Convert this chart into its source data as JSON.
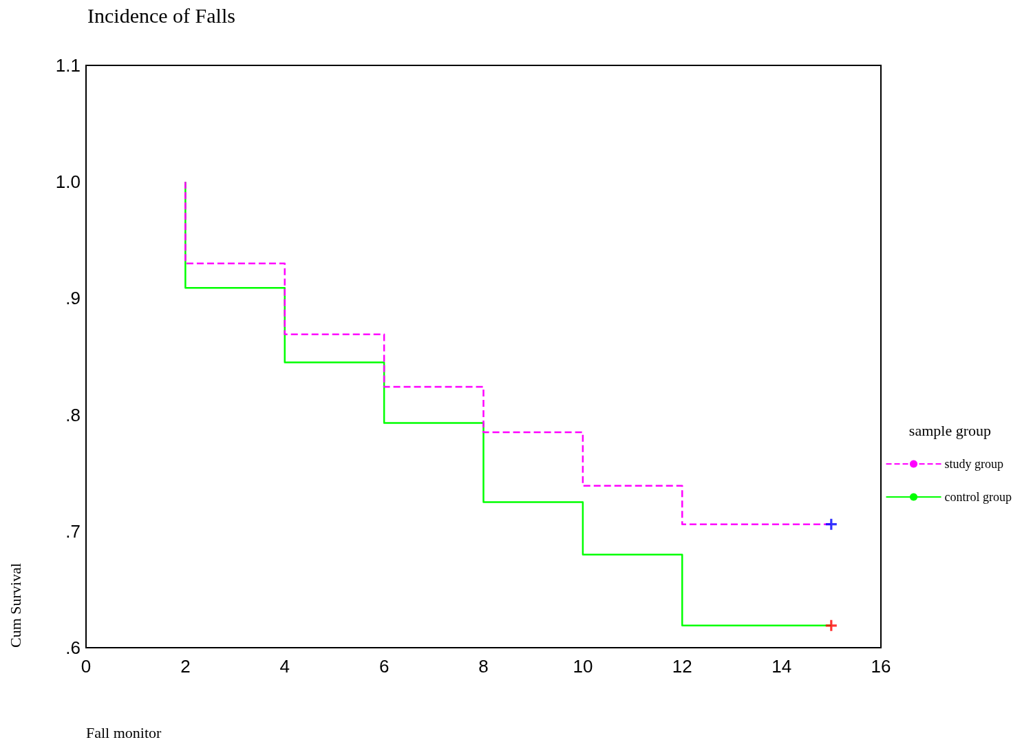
{
  "chart_data": {
    "type": "step",
    "title": "Incidence of Falls",
    "xlabel": "Fall monitor",
    "ylabel": "Cum Survival",
    "legend_title": "sample group",
    "xlim": [
      0,
      16
    ],
    "xticks": [
      0,
      2,
      4,
      6,
      8,
      10,
      12,
      14,
      16
    ],
    "ylim": [
      0.6,
      1.1
    ],
    "yticks": [
      {
        "value": 0.6,
        "label": ".6"
      },
      {
        "value": 0.7,
        "label": ".7"
      },
      {
        "value": 0.8,
        "label": ".8"
      },
      {
        "value": 0.9,
        "label": ".9"
      },
      {
        "value": 1.0,
        "label": "1.0"
      },
      {
        "value": 1.1,
        "label": "1.1"
      }
    ],
    "grid": false,
    "legend": "right",
    "marker": "none",
    "series": [
      {
        "name": "study group",
        "color": "#ff00ff",
        "line_style": "dashed",
        "x": [
          2,
          2,
          4,
          6,
          8,
          10,
          12,
          15
        ],
        "values": [
          1.0,
          0.93,
          0.869,
          0.824,
          0.785,
          0.739,
          0.706,
          0.706
        ]
      },
      {
        "name": "control group",
        "color": "#00ff00",
        "line_style": "solid",
        "x": [
          2,
          2,
          4,
          6,
          8,
          10,
          12,
          15
        ],
        "values": [
          1.0,
          0.909,
          0.845,
          0.793,
          0.725,
          0.68,
          0.619,
          0.619
        ]
      },
      {
        "type": "scatter",
        "marker": "cross",
        "color": "#0000ff",
        "x": [
          15
        ],
        "values": [
          0.706
        ]
      },
      {
        "type": "scatter",
        "marker": "cross",
        "color": "#ff0000",
        "x": [
          15
        ],
        "values": [
          0.619
        ]
      }
    ]
  }
}
